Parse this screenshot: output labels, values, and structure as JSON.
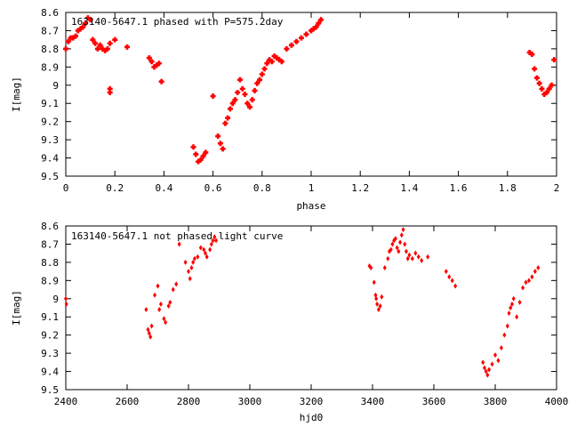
{
  "chart_data": [
    {
      "type": "scatter",
      "title": "163140-5647.1 phased with P=575.2day",
      "xlabel": "phase",
      "ylabel": "I[mag]",
      "xlim": [
        0,
        2
      ],
      "ylim": [
        8.6,
        9.5
      ],
      "y_inverted": true,
      "xticks": [
        0,
        0.2,
        0.4,
        0.6,
        0.8,
        1,
        1.2,
        1.4,
        1.6,
        1.8,
        2
      ],
      "xtick_labels": [
        "0",
        "0.2",
        "0.4",
        "0.6",
        "0.8",
        "1",
        "1.2",
        "1.4",
        "1.6",
        "1.8",
        "2"
      ],
      "yticks": [
        8.6,
        8.7,
        8.8,
        8.9,
        9.0,
        9.1,
        9.2,
        9.3,
        9.4,
        9.5
      ],
      "ytick_labels": [
        "8.6",
        "8.7",
        "8.8",
        "8.9",
        "9",
        "9.1",
        "9.2",
        "9.3",
        "9.4",
        "9.5"
      ],
      "grid": false,
      "marker": "plus",
      "color": "#ff0000",
      "series": [
        {
          "x": [
            0.0,
            0.01,
            0.02,
            0.03,
            0.04,
            0.05,
            0.06,
            0.07,
            0.08,
            0.09,
            0.1,
            0.11,
            0.12,
            0.13,
            0.14,
            0.15,
            0.16,
            0.17,
            0.18,
            0.18,
            0.18,
            0.2,
            0.25,
            0.34,
            0.35,
            0.36,
            0.37,
            0.38,
            0.39,
            0.52,
            0.53,
            0.54,
            0.55,
            0.56,
            0.57,
            0.6,
            0.62,
            0.63,
            0.64,
            0.65,
            0.66,
            0.67,
            0.68,
            0.69,
            0.7,
            0.71,
            0.72,
            0.73,
            0.74,
            0.75,
            0.76,
            0.77,
            0.78,
            0.79,
            0.8,
            0.81,
            0.82,
            0.83,
            0.84,
            0.85,
            0.86,
            0.87,
            0.88,
            0.9,
            0.92,
            0.94,
            0.96,
            0.98,
            1.0,
            1.01,
            1.02,
            1.03,
            1.04,
            1.89,
            1.9,
            1.91,
            1.92,
            1.93,
            1.94,
            1.95,
            1.96,
            1.97,
            1.98,
            1.99
          ],
          "y": [
            8.8,
            8.76,
            8.74,
            8.74,
            8.73,
            8.7,
            8.69,
            8.68,
            8.66,
            8.63,
            8.64,
            8.75,
            8.77,
            8.8,
            8.78,
            8.8,
            8.81,
            8.8,
            8.77,
            9.02,
            9.04,
            8.75,
            8.79,
            8.85,
            8.87,
            8.9,
            8.89,
            8.88,
            8.98,
            9.34,
            9.38,
            9.42,
            9.41,
            9.39,
            9.37,
            9.06,
            9.28,
            9.32,
            9.35,
            9.21,
            9.18,
            9.13,
            9.1,
            9.08,
            9.04,
            8.97,
            9.02,
            9.05,
            9.1,
            9.12,
            9.08,
            9.03,
            8.99,
            8.97,
            8.94,
            8.91,
            8.88,
            8.86,
            8.87,
            8.84,
            8.85,
            8.86,
            8.87,
            8.8,
            8.78,
            8.76,
            8.74,
            8.72,
            8.7,
            8.69,
            8.68,
            8.66,
            8.64,
            8.82,
            8.83,
            8.91,
            8.96,
            8.99,
            9.02,
            9.05,
            9.04,
            9.02,
            9.0,
            8.86
          ]
        }
      ]
    },
    {
      "type": "scatter",
      "title": "163140-5647.1 not phased light curve",
      "xlabel": "hjd0",
      "ylabel": "I[mag]",
      "xlim": [
        2400,
        4000
      ],
      "ylim": [
        8.6,
        9.5
      ],
      "y_inverted": true,
      "xticks": [
        2400,
        2600,
        2800,
        3000,
        3200,
        3400,
        3600,
        3800,
        4000
      ],
      "xtick_labels": [
        "2400",
        "2600",
        "2800",
        "3000",
        "3200",
        "3400",
        "3600",
        "3800",
        "4000"
      ],
      "yticks": [
        8.6,
        8.7,
        8.8,
        8.9,
        9.0,
        9.1,
        9.2,
        9.3,
        9.4,
        9.5
      ],
      "ytick_labels": [
        "8.6",
        "8.7",
        "8.8",
        "8.9",
        "9",
        "9.1",
        "9.2",
        "9.3",
        "9.4",
        "9.5"
      ],
      "grid": false,
      "marker": "diamond",
      "color": "#ff0000",
      "series": [
        {
          "x": [
            2400,
            2402,
            2662,
            2668,
            2672,
            2676,
            2680,
            2690,
            2700,
            2705,
            2710,
            2720,
            2725,
            2735,
            2740,
            2750,
            2760,
            2770,
            2790,
            2800,
            2805,
            2810,
            2815,
            2820,
            2830,
            2840,
            2850,
            2855,
            2860,
            2870,
            2875,
            2880,
            2885,
            2890,
            3390,
            3395,
            3405,
            3410,
            3412,
            3415,
            3420,
            3425,
            3430,
            3440,
            3450,
            3455,
            3460,
            3465,
            3470,
            3475,
            3480,
            3485,
            3490,
            3495,
            3500,
            3505,
            3510,
            3515,
            3520,
            3530,
            3540,
            3550,
            3560,
            3580,
            3640,
            3650,
            3660,
            3670,
            3760,
            3765,
            3770,
            3775,
            3780,
            3790,
            3800,
            3810,
            3820,
            3830,
            3840,
            3845,
            3850,
            3855,
            3860,
            3870,
            3880,
            3890,
            3900,
            3910,
            3920,
            3930,
            3940
          ],
          "y": [
            9.0,
            9.03,
            9.06,
            9.17,
            9.19,
            9.21,
            9.15,
            8.98,
            8.93,
            9.06,
            9.03,
            9.11,
            9.13,
            9.04,
            9.02,
            8.95,
            8.92,
            8.7,
            8.8,
            8.85,
            8.89,
            8.83,
            8.8,
            8.78,
            8.77,
            8.72,
            8.73,
            8.75,
            8.77,
            8.73,
            8.7,
            8.68,
            8.66,
            8.68,
            8.82,
            8.83,
            8.91,
            8.98,
            9.0,
            9.03,
            9.06,
            9.04,
            8.99,
            8.83,
            8.78,
            8.74,
            8.73,
            8.7,
            8.68,
            8.67,
            8.72,
            8.74,
            8.69,
            8.65,
            8.62,
            8.7,
            8.74,
            8.78,
            8.76,
            8.78,
            8.75,
            8.77,
            8.79,
            8.77,
            8.85,
            8.88,
            8.9,
            8.93,
            9.35,
            9.38,
            9.4,
            9.42,
            9.39,
            9.36,
            9.31,
            9.34,
            9.27,
            9.2,
            9.15,
            9.08,
            9.05,
            9.03,
            9.0,
            9.1,
            9.02,
            8.94,
            8.91,
            8.9,
            8.88,
            8.85,
            8.83
          ]
        }
      ]
    }
  ]
}
